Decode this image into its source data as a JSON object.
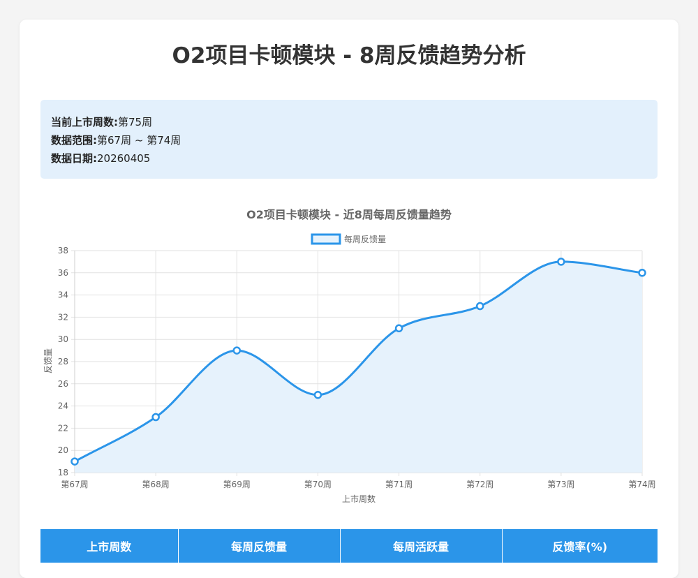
{
  "page": {
    "title": "O2项目卡顿模块 - 8周反馈趋势分析"
  },
  "info": {
    "rows": [
      {
        "key": "当前上市周数:",
        "value": "第75周"
      },
      {
        "key": "数据范围:",
        "value": "第67周 ~ 第74周"
      },
      {
        "key": "数据日期:",
        "value": "20260405"
      }
    ]
  },
  "colors": {
    "accent": "#2b95e9",
    "fill": "#e6f2fc",
    "info_bg": "#e3f0fc"
  },
  "chart_data": {
    "type": "line",
    "title": "O2项目卡顿模块 - 近8周每周反馈量趋势",
    "categories": [
      "第67周",
      "第68周",
      "第69周",
      "第70周",
      "第71周",
      "第72周",
      "第73周",
      "第74周"
    ],
    "series": [
      {
        "name": "每周反馈量",
        "values": [
          19,
          23,
          29,
          25,
          31,
          33,
          37,
          36
        ]
      }
    ],
    "xlabel": "上市周数",
    "ylabel": "反馈量",
    "ylim": [
      18,
      38
    ],
    "yticks": [
      18,
      20,
      22,
      24,
      26,
      28,
      30,
      32,
      34,
      36,
      38
    ],
    "grid": true,
    "legend": "top-center",
    "smooth": true,
    "area_fill": true
  },
  "table": {
    "headers": [
      "上市周数",
      "每周反馈量",
      "每周活跃量",
      "反馈率(%)"
    ]
  }
}
